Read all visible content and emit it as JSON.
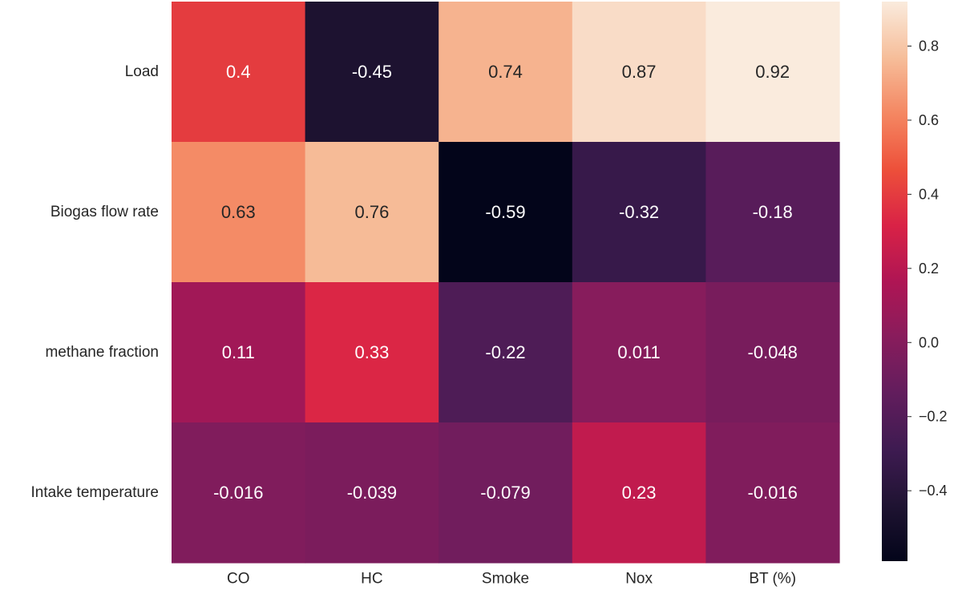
{
  "chart_data": {
    "type": "heatmap",
    "x_categories": [
      "CO",
      "HC",
      "Smoke",
      "Nox",
      "BT (%)"
    ],
    "y_categories": [
      "Load",
      "Biogas flow rate",
      "methane fraction",
      "Intake temperature"
    ],
    "values": [
      [
        0.4,
        -0.45,
        0.74,
        0.87,
        0.92
      ],
      [
        0.63,
        0.76,
        -0.59,
        -0.32,
        -0.18
      ],
      [
        0.11,
        0.33,
        -0.22,
        0.011,
        -0.048
      ],
      [
        -0.016,
        -0.039,
        -0.079,
        0.23,
        -0.016
      ]
    ],
    "annotations": [
      [
        "0.4",
        "-0.45",
        "0.74",
        "0.87",
        "0.92"
      ],
      [
        "0.63",
        "0.76",
        "-0.59",
        "-0.32",
        "-0.18"
      ],
      [
        "0.11",
        "0.33",
        "-0.22",
        "0.011",
        "-0.048"
      ],
      [
        "-0.016",
        "-0.039",
        "-0.079",
        "0.23",
        "-0.016"
      ]
    ],
    "colorbar": {
      "vmin": -0.59,
      "vmax": 0.92,
      "ticks": [
        -0.4,
        -0.2,
        0.0,
        0.2,
        0.4,
        0.6,
        0.8
      ],
      "tick_labels": [
        "−0.4",
        "−0.2",
        "0.0",
        "0.2",
        "0.4",
        "0.6",
        "0.8"
      ],
      "colormap": "rocket"
    },
    "grid": false
  }
}
